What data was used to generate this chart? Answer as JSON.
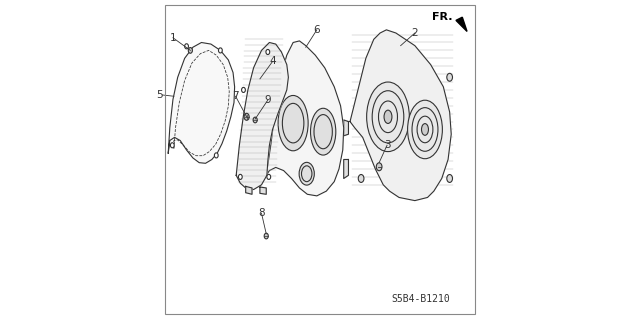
{
  "background_color": "#ffffff",
  "line_color": "#333333",
  "text_color": "#333333",
  "diagram_code": "S5B4-B1210",
  "fr_label": "FR.",
  "figsize": [
    6.4,
    3.19
  ],
  "dpi": 100
}
